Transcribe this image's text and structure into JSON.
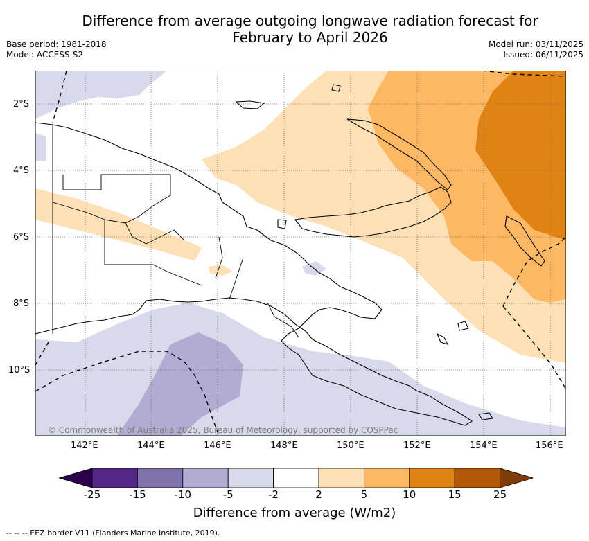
{
  "title": "Difference from average outgoing longwave radiation forecast for February to April 2026",
  "title_line1": "Difference from average outgoing longwave radiation forecast for",
  "title_line2": "February to April 2026",
  "base_period": "Base period: 1981-2018",
  "model": "Model: ACCESS-S2",
  "model_run": "Model run: 03/11/2025",
  "issued": "Issued: 06/11/2025",
  "latitude_labels": [
    "2°S",
    "4°S",
    "6°S",
    "8°S",
    "10°S"
  ],
  "longitude_labels": [
    "142°E",
    "144°E",
    "146°E",
    "148°E",
    "150°E",
    "152°E",
    "154°E",
    "156°E"
  ],
  "copyright": "© Commonwealth of Australia 2025, Bureau of Meteorology, supported by COSPPac",
  "colorbar": {
    "ticks": [
      "-25",
      "-15",
      "-10",
      "-5",
      "-2",
      "2",
      "5",
      "10",
      "15",
      "25"
    ],
    "colors": [
      "#2d004b",
      "#542788",
      "#8073ac",
      "#b2abd2",
      "#d8daeb",
      "#ffffff",
      "#fee0b6",
      "#fdb863",
      "#e08214",
      "#b35806",
      "#7f3b08"
    ],
    "label": "Difference from average (W/m2)"
  },
  "footnote": "-- -- -- EEZ border V11 (Flanders Marine Institute, 2019)."
}
